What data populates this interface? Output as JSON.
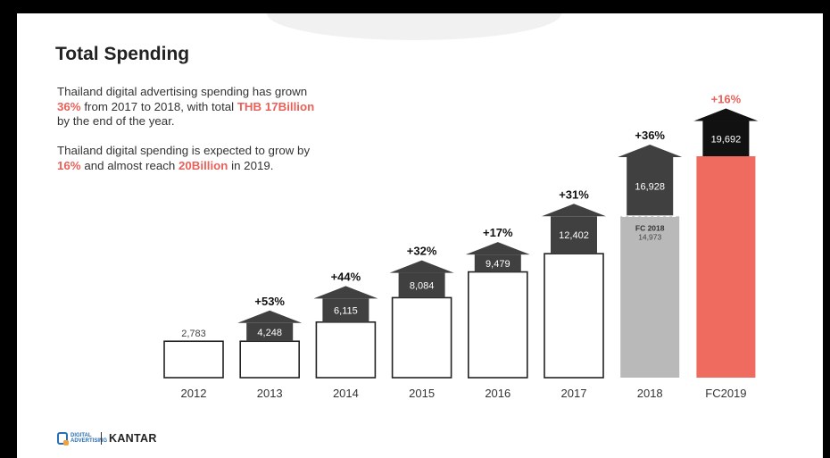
{
  "slide": {
    "title": "Total Spending",
    "paragraph1": {
      "line1": "Thailand digital advertising spending has grown",
      "line2_hl1": "36%",
      "line2_mid": " from 2017 to 2018, with total ",
      "line2_hl2": "THB 17Billion",
      "line3": "by the end of the year."
    },
    "paragraph2": {
      "line1": "Thailand digital spending is expected to grow by",
      "line2_hl1": "16%",
      "line2_mid": " and almost reach ",
      "line2_hl2": "20Billion",
      "line2_end": " in 2019."
    },
    "footer": {
      "logo_text": "DIGITAL ADVERTISING",
      "brand": "KANTAR"
    }
  },
  "colors": {
    "actual_bar_fill": "#ffffff",
    "forecast_2018_fill": "#b9b9b9",
    "forecast_2019_fill": "#ef6a5f",
    "arrow_dark": "#404040",
    "arrow_black": "#111111",
    "growth_label_fc2019": "#e8615a"
  },
  "chart_data": {
    "type": "bar",
    "categories": [
      "2012",
      "2013",
      "2014",
      "2015",
      "2016",
      "2017",
      "2018",
      "FC2019"
    ],
    "values": [
      2783,
      4248,
      6115,
      8084,
      9479,
      12402,
      16928,
      19692
    ],
    "value_labels": [
      "2,783",
      "4,248",
      "6,115",
      "8,084",
      "9,479",
      "12,402",
      "16,928",
      "19,692"
    ],
    "growth_labels": [
      "",
      "+53%",
      "+44%",
      "+32%",
      "+17%",
      "+31%",
      "+36%",
      "+16%"
    ],
    "previous_values": [
      null,
      2783,
      4248,
      6115,
      8084,
      9479,
      12402,
      16928
    ],
    "annotations": [
      {
        "category": "2018",
        "label": "FC 2018",
        "value": 14973,
        "value_label": "14,973"
      }
    ],
    "ylim": [
      0,
      21000
    ],
    "title": "",
    "xlabel": "",
    "ylabel": "",
    "grid": false
  }
}
